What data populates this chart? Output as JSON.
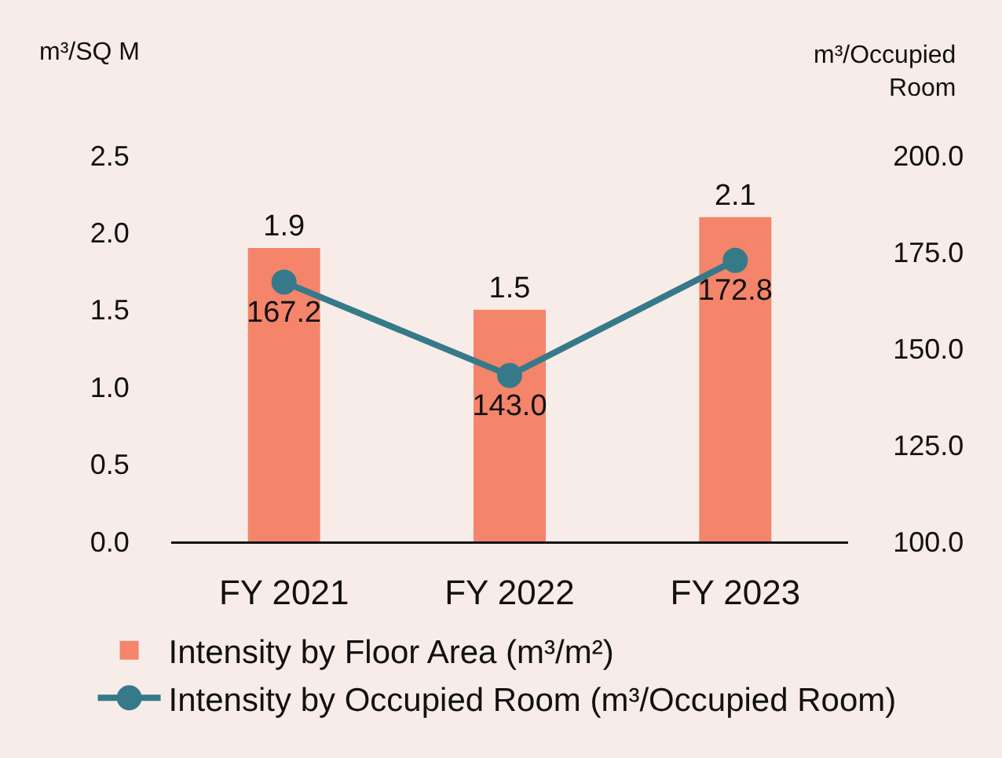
{
  "chart_data": {
    "type": "bar",
    "ylabel": "m³/SQ M",
    "y2label": "m³/Occupied Room",
    "categories": [
      "FY 2021",
      "FY 2022",
      "FY 2023"
    ],
    "series": [
      {
        "name": "Intensity by Floor Area (m³/m²)",
        "color": "#f4846a",
        "values": [
          1.9,
          1.5,
          2.1
        ],
        "value_labels": [
          "1.9",
          "1.5",
          "2.1"
        ]
      },
      {
        "name": "Intensity by Occupied Room (m³/Occupied Room)",
        "type": "line",
        "axis": "y2",
        "color": "#367a8a",
        "values": [
          167.2,
          143.0,
          172.8
        ],
        "value_labels": [
          "167.2",
          "143.0",
          "172.8"
        ]
      }
    ],
    "ylim": [
      0,
      2.5
    ],
    "yticks": [
      {
        "value": 0,
        "label": "0.0"
      },
      0.5,
      {
        "value": 1,
        "label": "1.0"
      },
      1.5,
      {
        "value": 2,
        "label": "2.0"
      },
      2.5
    ],
    "y2lim": [
      100,
      200
    ],
    "y2ticks": [
      {
        "value": 100,
        "label": "100.0"
      },
      {
        "value": 125,
        "label": "125.0"
      },
      {
        "value": 150,
        "label": "150.0"
      },
      {
        "value": 175,
        "label": "175.0"
      },
      {
        "value": 200,
        "label": "200.0"
      }
    ],
    "legend": "bottom",
    "marker": "circle",
    "line_style": "solid"
  }
}
